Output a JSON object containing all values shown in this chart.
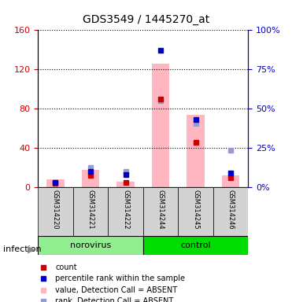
{
  "title": "GDS3549 / 1445270_at",
  "samples": [
    "GSM314220",
    "GSM314221",
    "GSM314222",
    "GSM314244",
    "GSM314245",
    "GSM314246"
  ],
  "groups": [
    "norovirus",
    "norovirus",
    "norovirus",
    "control",
    "control",
    "control"
  ],
  "ylim_left": [
    0,
    160
  ],
  "ylim_right": [
    0,
    100
  ],
  "yticks_left": [
    0,
    40,
    80,
    120,
    160
  ],
  "yticks_right": [
    0,
    25,
    50,
    75,
    100
  ],
  "ytick_labels_left": [
    "0",
    "40",
    "80",
    "120",
    "160"
  ],
  "ytick_labels_right": [
    "0%",
    "25%",
    "50%",
    "75%",
    "100%"
  ],
  "value_bars": [
    8,
    18,
    6,
    126,
    74,
    12
  ],
  "rank_squares": [
    5,
    20,
    16,
    88,
    65,
    38
  ],
  "count_dots": [
    4,
    12,
    5,
    90,
    46,
    10
  ],
  "percentile_dots": [
    3,
    10,
    8,
    87,
    43,
    9
  ],
  "bar_color": "#FFB6C1",
  "rank_color": "#9999CC",
  "count_color": "#CC0000",
  "percentile_color": "#0000CC",
  "group_colors": {
    "norovirus": "#90EE90",
    "control": "#00CC00"
  },
  "group_label_color": "black",
  "infection_label": "infection",
  "legend_items": [
    {
      "label": "count",
      "color": "#CC0000",
      "marker": "s"
    },
    {
      "label": "percentile rank within the sample",
      "color": "#0000CC",
      "marker": "s"
    },
    {
      "label": "value, Detection Call = ABSENT",
      "color": "#FFB6C1",
      "marker": "s"
    },
    {
      "label": "rank, Detection Call = ABSENT",
      "color": "#9999CC",
      "marker": "s"
    }
  ],
  "left_axis_color": "#CC0000",
  "right_axis_color": "#0000CC",
  "grid_color": "black",
  "grid_style": "dotted"
}
